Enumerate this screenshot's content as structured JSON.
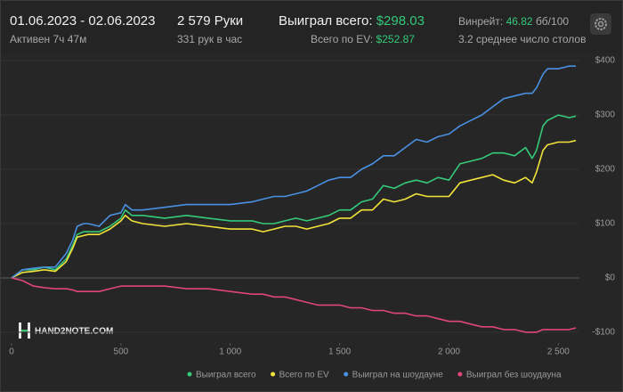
{
  "header": {
    "date_range": "01.06.2023 - 02.06.2023",
    "active_time": "Активен 7ч 47м",
    "hands": "2 579 Руки",
    "hands_per_hour": "331 рук в час",
    "won_total_label": "Выиграл всего:",
    "won_total_value": "$298.03",
    "ev_label": "Всего по EV:",
    "ev_value": "$252.87",
    "winrate_label": "Винрейт:",
    "winrate_value": "46.82",
    "winrate_unit": "бб/100",
    "avg_tables": "3.2 среднее число столов"
  },
  "chart_data": {
    "type": "line",
    "watermark": "HAND2NOTE.COM",
    "x": [
      0,
      50,
      100,
      150,
      200,
      250,
      280,
      300,
      330,
      350,
      400,
      450,
      500,
      520,
      550,
      600,
      700,
      800,
      900,
      1000,
      1100,
      1150,
      1200,
      1250,
      1300,
      1350,
      1400,
      1450,
      1500,
      1550,
      1600,
      1650,
      1700,
      1750,
      1800,
      1850,
      1900,
      1950,
      2000,
      2050,
      2100,
      2150,
      2200,
      2250,
      2300,
      2350,
      2380,
      2400,
      2430,
      2450,
      2500,
      2550,
      2580
    ],
    "xlim": [
      0,
      2580
    ],
    "xticks": [
      0,
      500,
      {
        "value": 1000,
        "label": "1 000"
      },
      {
        "value": 1500,
        "label": "1 500"
      },
      {
        "value": 2000,
        "label": "2 000"
      },
      {
        "value": 2500,
        "label": "2 500"
      }
    ],
    "ylim": [
      -110,
      410
    ],
    "yticks": [
      {
        "value": -100,
        "label": "-$100"
      },
      {
        "value": 0,
        "label": "$0"
      },
      {
        "value": 100,
        "label": "$100"
      },
      {
        "value": 200,
        "label": "$200"
      },
      {
        "value": 300,
        "label": "$300"
      },
      {
        "value": 400,
        "label": "$400"
      }
    ],
    "grid": true,
    "series": [
      {
        "name": "Выиграл всего",
        "color": "#35c97a",
        "values": [
          0,
          15,
          15,
          20,
          15,
          35,
          60,
          80,
          85,
          85,
          85,
          95,
          110,
          125,
          115,
          115,
          110,
          115,
          110,
          105,
          105,
          100,
          100,
          105,
          110,
          105,
          110,
          115,
          125,
          125,
          140,
          145,
          170,
          165,
          175,
          180,
          175,
          185,
          180,
          210,
          215,
          220,
          230,
          230,
          225,
          240,
          220,
          235,
          280,
          290,
          300,
          295,
          298
        ]
      },
      {
        "name": "Всего по EV",
        "color": "#f2e33a",
        "values": [
          0,
          10,
          12,
          15,
          12,
          30,
          55,
          75,
          78,
          80,
          80,
          90,
          105,
          115,
          105,
          100,
          95,
          100,
          95,
          90,
          90,
          85,
          90,
          95,
          95,
          90,
          95,
          100,
          110,
          110,
          125,
          125,
          145,
          140,
          145,
          155,
          150,
          150,
          150,
          175,
          180,
          185,
          190,
          180,
          175,
          185,
          175,
          195,
          235,
          245,
          250,
          250,
          253
        ]
      },
      {
        "name": "Выиграл на шоудауне",
        "color": "#4a90e2",
        "values": [
          0,
          15,
          18,
          20,
          20,
          45,
          70,
          95,
          100,
          100,
          95,
          115,
          120,
          135,
          125,
          125,
          130,
          135,
          135,
          135,
          140,
          145,
          150,
          150,
          155,
          160,
          170,
          180,
          185,
          185,
          200,
          210,
          225,
          225,
          240,
          255,
          250,
          260,
          265,
          280,
          290,
          300,
          315,
          330,
          335,
          340,
          340,
          350,
          375,
          385,
          385,
          390,
          390
        ]
      },
      {
        "name": "Выиграл без шоудауна",
        "color": "#e0457b",
        "values": [
          0,
          -5,
          -15,
          -18,
          -20,
          -20,
          -22,
          -25,
          -25,
          -25,
          -25,
          -20,
          -15,
          -15,
          -15,
          -15,
          -15,
          -20,
          -20,
          -25,
          -30,
          -30,
          -35,
          -35,
          -40,
          -45,
          -50,
          -50,
          -50,
          -55,
          -55,
          -60,
          -60,
          -65,
          -65,
          -70,
          -70,
          -75,
          -80,
          -80,
          -85,
          -90,
          -90,
          -95,
          -95,
          -100,
          -100,
          -100,
          -95,
          -95,
          -95,
          -95,
          -92
        ]
      }
    ]
  }
}
